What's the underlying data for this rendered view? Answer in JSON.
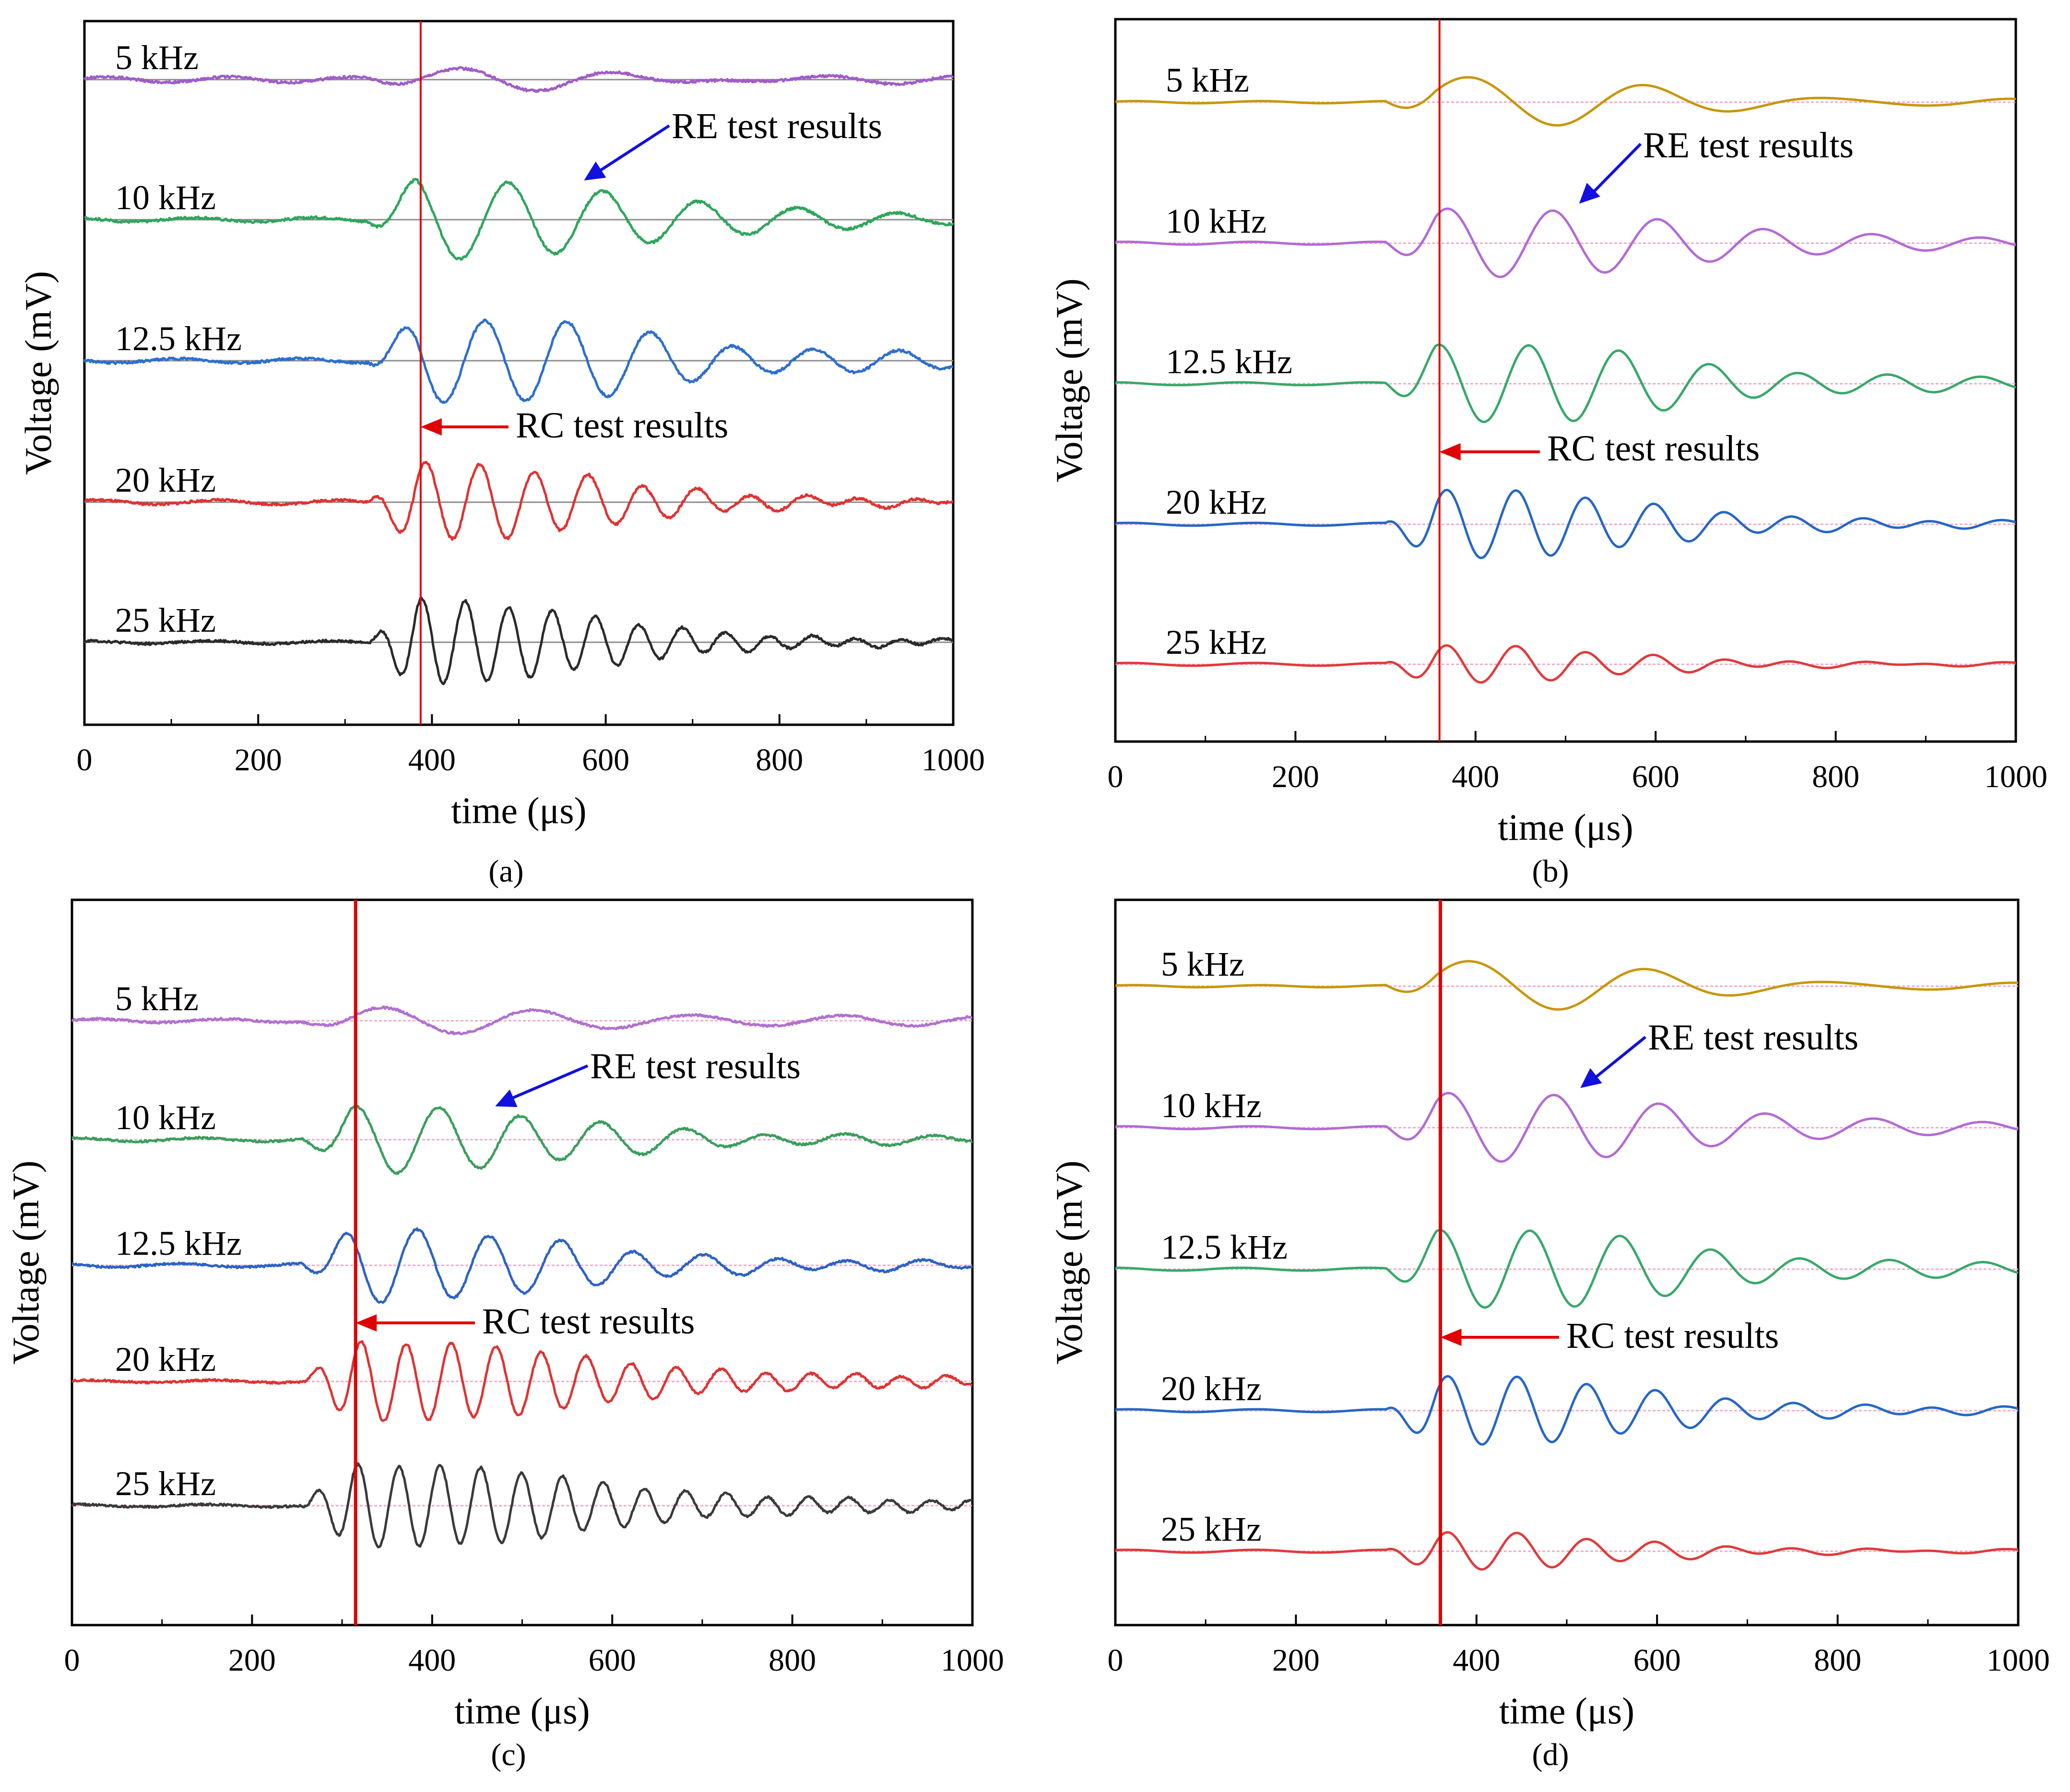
{
  "chart_data": [
    {
      "type": "line",
      "panel_label": "(a)",
      "xlabel": "time (μs)",
      "ylabel": "Voltage (mV)",
      "xlim": [
        0,
        1000
      ],
      "x_ticks": [
        "0",
        "200",
        "400",
        "600",
        "800",
        "1000"
      ],
      "onset_marker_time": 387,
      "trace_style": "noisy",
      "baseline_color": "#8c8c8c",
      "re_annotation": {
        "text": "RE test results",
        "target_time": 575
      },
      "rc_annotation": {
        "text": "RC test results",
        "target_time": 387
      },
      "series": [
        {
          "name": "5 kHz",
          "color": "#a05cc8",
          "amp": 0.22,
          "freq": 5,
          "phase": 0.4,
          "decay": 1.3,
          "pre_noise": 0.04
        },
        {
          "name": "10 kHz",
          "color": "#2ea65c",
          "amp": 1.0,
          "freq": 9,
          "phase": 2.2,
          "decay": 1.4,
          "pre_noise": 0.03
        },
        {
          "name": "12.5 kHz",
          "color": "#2d6ed0",
          "amp": 1.0,
          "freq": 10.5,
          "phase": 3.0,
          "decay": 1.2,
          "pre_noise": 0.03
        },
        {
          "name": "20 kHz",
          "color": "#e03232",
          "amp": 1.05,
          "freq": 16,
          "phase": 1.0,
          "decay": 1.9,
          "pre_noise": 0.03
        },
        {
          "name": "25 kHz",
          "color": "#2a2a2a",
          "amp": 1.15,
          "freq": 20,
          "phase": 1.4,
          "decay": 2.0,
          "pre_noise": 0.02
        }
      ]
    },
    {
      "type": "line",
      "panel_label": "(b)",
      "xlabel": "time (μs)",
      "ylabel": "Voltage (mV)",
      "xlim": [
        0,
        1000
      ],
      "x_ticks": [
        "0",
        "200",
        "400",
        "600",
        "800",
        "1000"
      ],
      "onset_marker_time": 360,
      "trace_style": "smooth",
      "baseline_color": "#f4a6c8",
      "re_annotation": {
        "text": "RE test results",
        "target_time": 515
      },
      "rc_annotation": {
        "text": "RC test results",
        "target_time": 360
      },
      "series": [
        {
          "name": "5 kHz",
          "color": "#c8960a",
          "amp": 0.65,
          "freq": 5,
          "phase": 0.6,
          "decay": 1.6,
          "pre_noise": 0.015
        },
        {
          "name": "10 kHz",
          "color": "#b26ad6",
          "amp": 0.85,
          "freq": 8.5,
          "phase": 1.1,
          "decay": 1.3,
          "pre_noise": 0.02
        },
        {
          "name": "12.5 kHz",
          "color": "#37a86a",
          "amp": 0.95,
          "freq": 10,
          "phase": 1.6,
          "decay": 1.3,
          "pre_noise": 0.02
        },
        {
          "name": "20 kHz",
          "color": "#2466c8",
          "amp": 0.9,
          "freq": 13,
          "phase": 0.9,
          "decay": 1.7,
          "pre_noise": 0.02
        },
        {
          "name": "25 kHz",
          "color": "#e03a3a",
          "amp": 0.55,
          "freq": 13,
          "phase": 0.9,
          "decay": 2.2,
          "pre_noise": 0.02
        }
      ]
    },
    {
      "type": "line",
      "panel_label": "(c)",
      "xlabel": "time (μs)",
      "ylabel": "Voltage (mV)",
      "xlim": [
        0,
        1000
      ],
      "x_ticks": [
        "0",
        "200",
        "400",
        "600",
        "800",
        "1000"
      ],
      "onset_marker_time": 315,
      "trace_style": "noisy",
      "baseline_color": "#f4a6c8",
      "re_annotation": {
        "text": "RE test results",
        "target_time": 470
      },
      "rc_annotation": {
        "text": "RC test results",
        "target_time": 315
      },
      "series": [
        {
          "name": "5 kHz",
          "color": "#b070d0",
          "amp": 0.35,
          "freq": 6,
          "phase": 0.3,
          "decay": 0.9,
          "pre_noise": 0.03
        },
        {
          "name": "10 kHz",
          "color": "#3a9e5c",
          "amp": 0.95,
          "freq": 11,
          "phase": 1.5,
          "decay": 1.5,
          "pre_noise": 0.03
        },
        {
          "name": "12.5 kHz",
          "color": "#2c62c4",
          "amp": 1.05,
          "freq": 12.5,
          "phase": 2.5,
          "decay": 1.5,
          "pre_noise": 0.03
        },
        {
          "name": "20 kHz",
          "color": "#e03232",
          "amp": 1.1,
          "freq": 20,
          "phase": 0.8,
          "decay": 1.3,
          "pre_noise": 0.02
        },
        {
          "name": "25 kHz",
          "color": "#3a3a3a",
          "amp": 1.15,
          "freq": 22,
          "phase": 1.2,
          "decay": 1.3,
          "pre_noise": 0.02
        }
      ]
    },
    {
      "type": "line",
      "panel_label": "(d)",
      "xlabel": "time (μs)",
      "ylabel": "Voltage (mV)",
      "xlim": [
        0,
        1000
      ],
      "x_ticks": [
        "0",
        "200",
        "400",
        "600",
        "800",
        "1000"
      ],
      "onset_marker_time": 360,
      "trace_style": "smooth",
      "baseline_color": "#f4a6c8",
      "re_annotation": {
        "text": "RE test results",
        "target_time": 515
      },
      "rc_annotation": {
        "text": "RC test results",
        "target_time": 360
      },
      "series": [
        {
          "name": "5 kHz",
          "color": "#c8960a",
          "amp": 0.65,
          "freq": 5,
          "phase": 0.6,
          "decay": 1.6,
          "pre_noise": 0.015
        },
        {
          "name": "10 kHz",
          "color": "#b26ad6",
          "amp": 0.85,
          "freq": 8.5,
          "phase": 1.1,
          "decay": 1.3,
          "pre_noise": 0.02
        },
        {
          "name": "12.5 kHz",
          "color": "#37a86a",
          "amp": 0.95,
          "freq": 10,
          "phase": 1.6,
          "decay": 1.3,
          "pre_noise": 0.02
        },
        {
          "name": "20 kHz",
          "color": "#2466c8",
          "amp": 0.9,
          "freq": 13,
          "phase": 0.9,
          "decay": 1.7,
          "pre_noise": 0.02
        },
        {
          "name": "25 kHz",
          "color": "#e03a3a",
          "amp": 0.55,
          "freq": 13,
          "phase": 0.9,
          "decay": 2.2,
          "pre_noise": 0.02
        }
      ]
    }
  ]
}
